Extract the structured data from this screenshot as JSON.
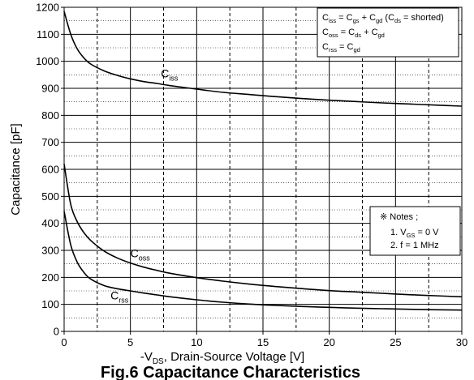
{
  "chart_data": {
    "type": "line",
    "title": "Fig.6 Capacitance Characteristics",
    "xlabel": {
      "main": "-V",
      "sub": "DS",
      "rest": ", Drain-Source Voltage [V]"
    },
    "ylabel": "Capacitance [pF]",
    "xlim": [
      0,
      30
    ],
    "ylim": [
      0,
      1200
    ],
    "x_ticks": [
      0,
      5,
      10,
      15,
      20,
      25,
      30
    ],
    "y_ticks": [
      0,
      100,
      200,
      300,
      400,
      500,
      600,
      700,
      800,
      900,
      1000,
      1100,
      1200
    ],
    "x_minor_dashed": [
      2.5,
      7.5,
      12.5,
      17.5,
      22.5,
      27.5
    ],
    "y_minor_dotted": [
      50,
      150,
      250,
      350,
      450,
      550,
      650,
      750,
      850,
      950,
      1050,
      1150
    ],
    "grid": true,
    "series": [
      {
        "name": "C_iss",
        "label": {
          "main": "C",
          "sub": "iss"
        },
        "label_at": [
          7.3,
          940
        ],
        "x": [
          0,
          0.5,
          1,
          1.5,
          2,
          3,
          4,
          5,
          6,
          7,
          8,
          10,
          12,
          14,
          16,
          18,
          20,
          22,
          24,
          26,
          28,
          30
        ],
        "y": [
          1185,
          1100,
          1045,
          1012,
          990,
          965,
          948,
          935,
          925,
          918,
          910,
          897,
          885,
          877,
          869,
          862,
          856,
          851,
          846,
          842,
          838,
          834
        ]
      },
      {
        "name": "C_oss",
        "label": {
          "main": "C",
          "sub": "oss"
        },
        "label_at": [
          5.0,
          275
        ],
        "x": [
          0,
          0.5,
          1,
          1.5,
          2,
          3,
          4,
          5,
          6,
          7,
          8,
          10,
          12,
          14,
          16,
          18,
          20,
          22,
          24,
          26,
          28,
          30
        ],
        "y": [
          620,
          470,
          405,
          365,
          337,
          298,
          272,
          253,
          238,
          226,
          215,
          199,
          186,
          175,
          166,
          158,
          151,
          146,
          141,
          136,
          132,
          128
        ]
      },
      {
        "name": "C_rss",
        "label": {
          "main": "C",
          "sub": "rss"
        },
        "label_at": [
          3.5,
          118
        ],
        "x": [
          0,
          0.5,
          1,
          1.5,
          2,
          3,
          4,
          5,
          6,
          7,
          8,
          10,
          12,
          14,
          16,
          18,
          20,
          22,
          24,
          26,
          28,
          30
        ],
        "y": [
          445,
          320,
          255,
          218,
          194,
          170,
          158,
          150,
          142,
          135,
          128,
          117,
          108,
          101,
          96,
          92,
          89,
          86,
          84,
          82,
          80,
          79
        ]
      }
    ],
    "legend_box": {
      "placement": "top-right",
      "lines": [
        [
          [
            "C",
            ""
          ],
          [
            "iss",
            "sub"
          ],
          [
            " = C",
            ""
          ],
          [
            "gs",
            "sub"
          ],
          [
            " + C",
            ""
          ],
          [
            "gd",
            "sub"
          ],
          [
            " (C",
            ""
          ],
          [
            "ds",
            "sub"
          ],
          [
            " = shorted)",
            ""
          ]
        ],
        [
          [
            "C",
            ""
          ],
          [
            "oss",
            "sub"
          ],
          [
            " = C",
            ""
          ],
          [
            "ds",
            "sub"
          ],
          [
            " + C",
            ""
          ],
          [
            "gd",
            "sub"
          ]
        ],
        [
          [
            "C",
            ""
          ],
          [
            "rss",
            "sub"
          ],
          [
            " = C",
            ""
          ],
          [
            "gd",
            "sub"
          ]
        ]
      ]
    },
    "notes_box": {
      "placement": "right-middle",
      "heading": "※ Notes ;",
      "line1": [
        [
          "1. V",
          ""
        ],
        [
          "GS",
          "sub"
        ],
        [
          " = 0 V",
          ""
        ]
      ],
      "line2": "2. f = 1 MHz"
    },
    "line_color": "#000000",
    "grid_color": "#000000"
  }
}
